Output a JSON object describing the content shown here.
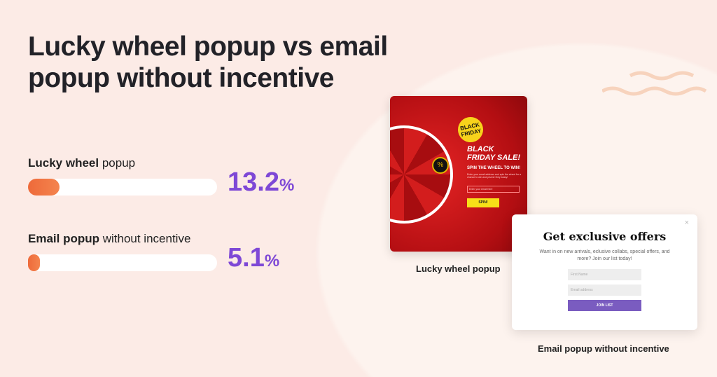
{
  "title": "Lucky wheel popup vs email popup without incentive",
  "chart_data": {
    "type": "bar",
    "orientation": "horizontal",
    "categories": [
      {
        "bold": "Lucky wheel",
        "rest": " popup"
      },
      {
        "bold": "Email popup",
        "rest": " without incentive"
      }
    ],
    "values": [
      13.2,
      5.1
    ],
    "value_labels": [
      "13.2",
      "5.1"
    ],
    "unit": "%",
    "colors": {
      "bar": "#ef6d3d",
      "track": "#ffffff",
      "value": "#7e48d6"
    }
  },
  "lucky_popup": {
    "badge": "BLACK FRIDAY",
    "headline1": "BLACK",
    "headline2": "FRIDAY SALE!",
    "sub": "SPIN THE WHEEL TO WIN!",
    "body": "Enter your email address and spin the wheel for a chance to win and prizes! Only today!",
    "email_placeholder": "Enter your email here",
    "button": "SPIN!",
    "caption": "Lucky wheel popup"
  },
  "email_popup": {
    "title": "Get exclusive offers",
    "body": "Want in on new arrivals, eclusive collabs, special offers, and more? Join our list today!",
    "first_name_placeholder": "First Name",
    "email_placeholder": "Email address",
    "button": "JOIN LIST",
    "close": "×",
    "caption": "Email popup without incentive"
  }
}
